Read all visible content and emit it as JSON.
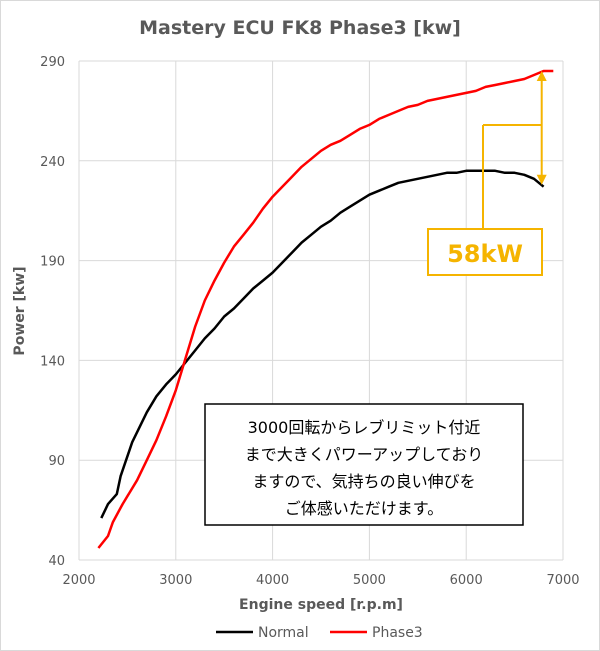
{
  "chart_data": {
    "type": "line",
    "title": "Mastery ECU FK8 Phase3 [kw]",
    "xlabel": "Engine speed [r.p.m]",
    "ylabel": "Power [kw]",
    "xlim": [
      2000,
      7000
    ],
    "ylim": [
      40,
      290
    ],
    "xticks": [
      "2000",
      "3000",
      "4000",
      "5000",
      "6000",
      "7000"
    ],
    "yticks": [
      "40",
      "90",
      "140",
      "190",
      "240",
      "290"
    ],
    "grid": true,
    "legend_position": "bottom",
    "series": [
      {
        "name": "Normal",
        "color": "#000000",
        "x": [
          2230,
          2300,
          2390,
          2430,
          2550,
          2700,
          2800,
          2900,
          3000,
          3100,
          3200,
          3300,
          3400,
          3500,
          3600,
          3700,
          3800,
          3900,
          4000,
          4100,
          4200,
          4300,
          4400,
          4500,
          4600,
          4700,
          4800,
          4900,
          5000,
          5100,
          5200,
          5300,
          5400,
          5500,
          5600,
          5700,
          5800,
          5900,
          6000,
          6100,
          6200,
          6300,
          6400,
          6500,
          6600,
          6700,
          6800
        ],
        "y": [
          61,
          68,
          73,
          82,
          99,
          114,
          122,
          128,
          133,
          139,
          145,
          151,
          156,
          162,
          166,
          171,
          176,
          180,
          184,
          189,
          194,
          199,
          203,
          207,
          210,
          214,
          217,
          220,
          223,
          225,
          227,
          229,
          230,
          231,
          232,
          233,
          234,
          234,
          235,
          235,
          235,
          235,
          234,
          234,
          233,
          231,
          227
        ]
      },
      {
        "name": "Phase3",
        "color": "#ff0000",
        "x": [
          2200,
          2300,
          2350,
          2450,
          2600,
          2700,
          2800,
          2900,
          3000,
          3100,
          3200,
          3300,
          3400,
          3500,
          3600,
          3700,
          3800,
          3900,
          4000,
          4100,
          4200,
          4300,
          4400,
          4500,
          4600,
          4700,
          4800,
          4900,
          5000,
          5100,
          5200,
          5300,
          5400,
          5500,
          5600,
          5700,
          5800,
          5900,
          6000,
          6100,
          6200,
          6300,
          6400,
          6500,
          6600,
          6700,
          6800,
          6900
        ],
        "y": [
          46,
          52,
          59,
          68,
          80,
          90,
          100,
          112,
          125,
          141,
          157,
          170,
          180,
          189,
          197,
          203,
          209,
          216,
          222,
          227,
          232,
          237,
          241,
          245,
          248,
          250,
          253,
          256,
          258,
          261,
          263,
          265,
          267,
          268,
          270,
          271,
          272,
          273,
          274,
          275,
          277,
          278,
          279,
          280,
          281,
          283,
          285,
          285
        ]
      }
    ],
    "annotations": {
      "difference_label": "58kW",
      "difference_color": "#f5b400",
      "arrow_x": 6780,
      "arrow_from": 228,
      "arrow_to": 285,
      "callout_lines": [
        "3000回転からレブリミット付近",
        "まで大きくパワーアップしており",
        "ますので、気持ちの良い伸びを",
        "ご体感いただけます。"
      ]
    }
  }
}
